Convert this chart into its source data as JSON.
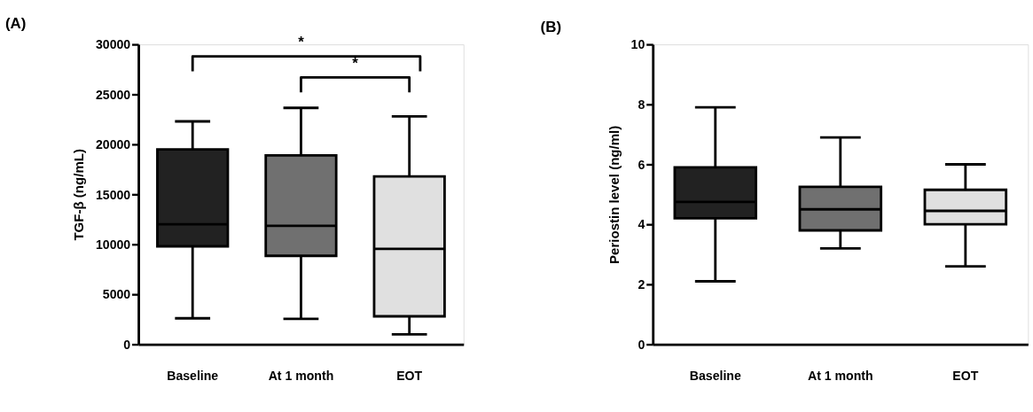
{
  "chart_data": [
    {
      "type": "box",
      "title": "(A)",
      "ylabel": "TGF-β (ng/mL)",
      "categories": [
        "Baseline",
        "At 1 month",
        "EOT"
      ],
      "colors": [
        "#222222",
        "#707070",
        "#e0e0e0"
      ],
      "boxes": [
        {
          "low": 2600,
          "q1": 9800,
          "median": 12000,
          "q3": 19500,
          "high": 22300
        },
        {
          "low": 2550,
          "q1": 8850,
          "median": 11850,
          "q3": 18900,
          "high": 23650
        },
        {
          "low": 1000,
          "q1": 2800,
          "median": 9550,
          "q3": 16800,
          "high": 22800
        }
      ],
      "ylim": [
        0,
        30000
      ],
      "yticks": [
        0,
        5000,
        10000,
        15000,
        20000,
        25000,
        30000
      ],
      "grid": false,
      "legend": false,
      "annotations": [
        "*",
        "*"
      ]
    },
    {
      "type": "box",
      "title": "(B)",
      "ylabel": "Periostin level (ng/ml)",
      "categories": [
        "Baseline",
        "At 1 month",
        "EOT"
      ],
      "colors": [
        "#222222",
        "#707070",
        "#e0e0e0"
      ],
      "boxes": [
        {
          "low": 2.1,
          "q1": 4.2,
          "median": 4.75,
          "q3": 5.9,
          "high": 7.9
        },
        {
          "low": 3.2,
          "q1": 3.8,
          "median": 4.5,
          "q3": 5.25,
          "high": 6.9
        },
        {
          "low": 2.6,
          "q1": 4.0,
          "median": 4.45,
          "q3": 5.15,
          "high": 6.0
        }
      ],
      "ylim": [
        0,
        10
      ],
      "yticks": [
        0,
        2,
        4,
        6,
        8,
        10
      ],
      "grid": false,
      "legend": false
    }
  ]
}
